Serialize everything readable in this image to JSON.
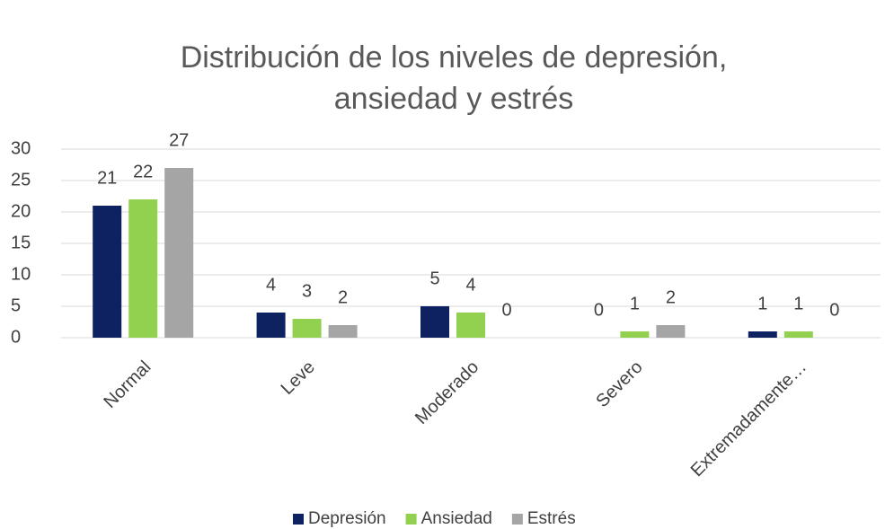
{
  "chart_data": {
    "type": "bar",
    "title": [
      "Distribución de los niveles de depresión,",
      "ansiedad y estrés"
    ],
    "categories": [
      "Normal",
      "Leve",
      "Moderado",
      "Severo",
      "Extremadamente…"
    ],
    "series": [
      {
        "name": "Depresión",
        "color": "#0e2160",
        "values": [
          21,
          4,
          5,
          0,
          1
        ]
      },
      {
        "name": "Ansiedad",
        "color": "#92d050",
        "values": [
          22,
          3,
          4,
          1,
          1
        ]
      },
      {
        "name": "Estrés",
        "color": "#a5a5a5",
        "values": [
          27,
          2,
          0,
          2,
          0
        ]
      }
    ],
    "ylim": [
      0,
      30
    ],
    "yticks": [
      0,
      5,
      10,
      15,
      20,
      25,
      30
    ],
    "grid": true,
    "legend": "bottom"
  }
}
